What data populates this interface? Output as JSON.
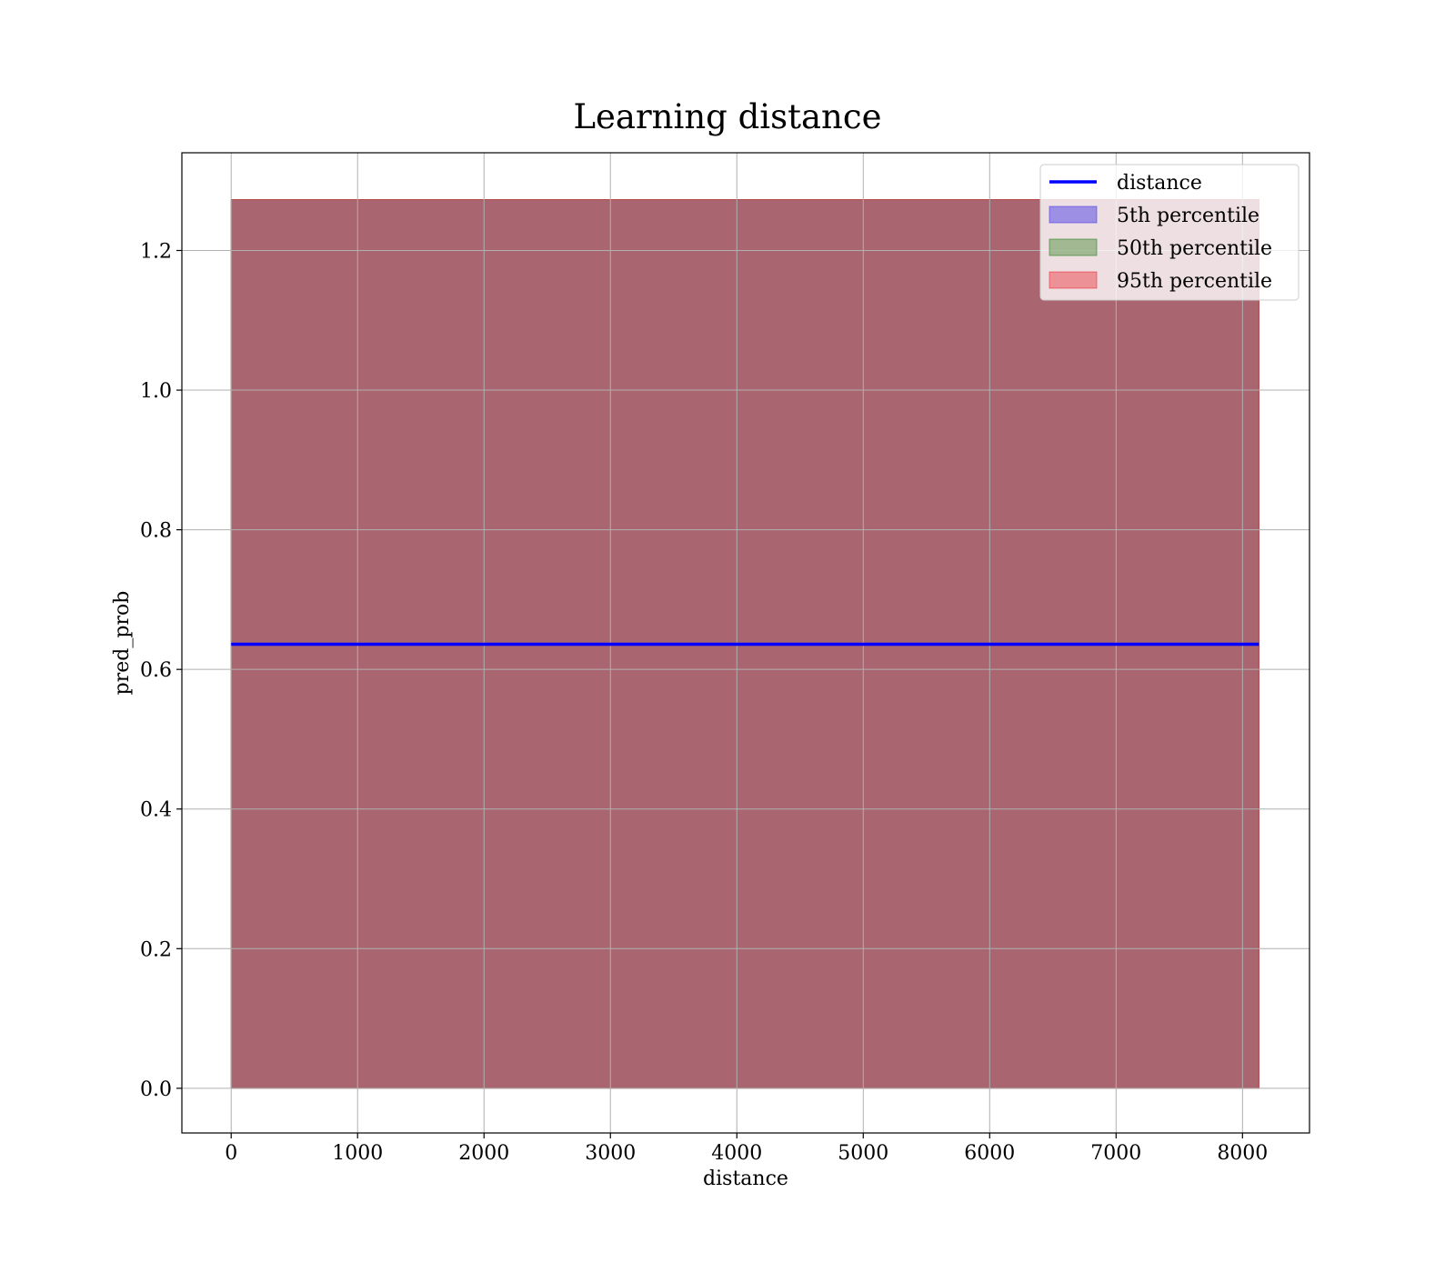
{
  "chart_data": {
    "type": "area",
    "title": "Learning distance",
    "xlabel": "distance",
    "ylabel": "pred_prob",
    "xlim": [
      -390,
      8530
    ],
    "ylim": [
      -0.064,
      1.34
    ],
    "xticks": [
      0,
      1000,
      2000,
      3000,
      4000,
      5000,
      6000,
      7000,
      8000
    ],
    "xtick_labels": [
      "0",
      "1000",
      "2000",
      "3000",
      "4000",
      "5000",
      "6000",
      "7000",
      "8000"
    ],
    "yticks": [
      0.0,
      0.2,
      0.4,
      0.6,
      0.8,
      1.0,
      1.2
    ],
    "ytick_labels": [
      "0.0",
      "0.2",
      "0.4",
      "0.6",
      "0.8",
      "1.0",
      "1.2"
    ],
    "grid": true,
    "legend_position": "top-right",
    "line_series": {
      "name": "distance",
      "color": "#0000ff",
      "x": [
        0,
        8130
      ],
      "y": [
        0.636,
        0.636
      ]
    },
    "band_series": [
      {
        "name": "5th percentile",
        "color": "#4c3ee6",
        "opacity": 0.5,
        "x": [
          0,
          8130
        ],
        "lower": [
          0.0,
          0.0
        ],
        "upper": [
          1.273,
          1.273
        ]
      },
      {
        "name": "50th percentile",
        "color": "#2e7d1f",
        "opacity": 0.4,
        "x": [
          0,
          8130
        ],
        "lower": [
          0.0,
          0.0
        ],
        "upper": [
          1.273,
          1.273
        ]
      },
      {
        "name": "95th percentile",
        "color": "#e8303a",
        "opacity": 0.45,
        "x": [
          0,
          8130
        ],
        "lower": [
          0.0,
          0.0
        ],
        "upper": [
          1.273,
          1.273
        ]
      }
    ]
  }
}
